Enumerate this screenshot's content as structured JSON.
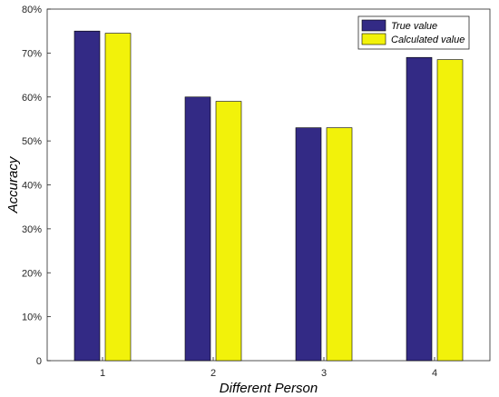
{
  "chart_data": {
    "type": "bar",
    "categories": [
      "1",
      "2",
      "3",
      "4"
    ],
    "series": [
      {
        "name": "True value",
        "values": [
          75,
          60,
          53,
          69
        ],
        "color": "#332a85"
      },
      {
        "name": "Calculated value",
        "values": [
          74.5,
          59,
          53,
          68.5
        ],
        "color": "#f2f20a"
      }
    ],
    "xlabel": "Different Person",
    "ylabel": "Accuracy",
    "ylim": [
      0,
      80
    ],
    "yticks": [
      "0",
      "10%",
      "20%",
      "30%",
      "40%",
      "50%",
      "60%",
      "70%",
      "80%"
    ],
    "grid": false,
    "legend_position": "top-right"
  }
}
